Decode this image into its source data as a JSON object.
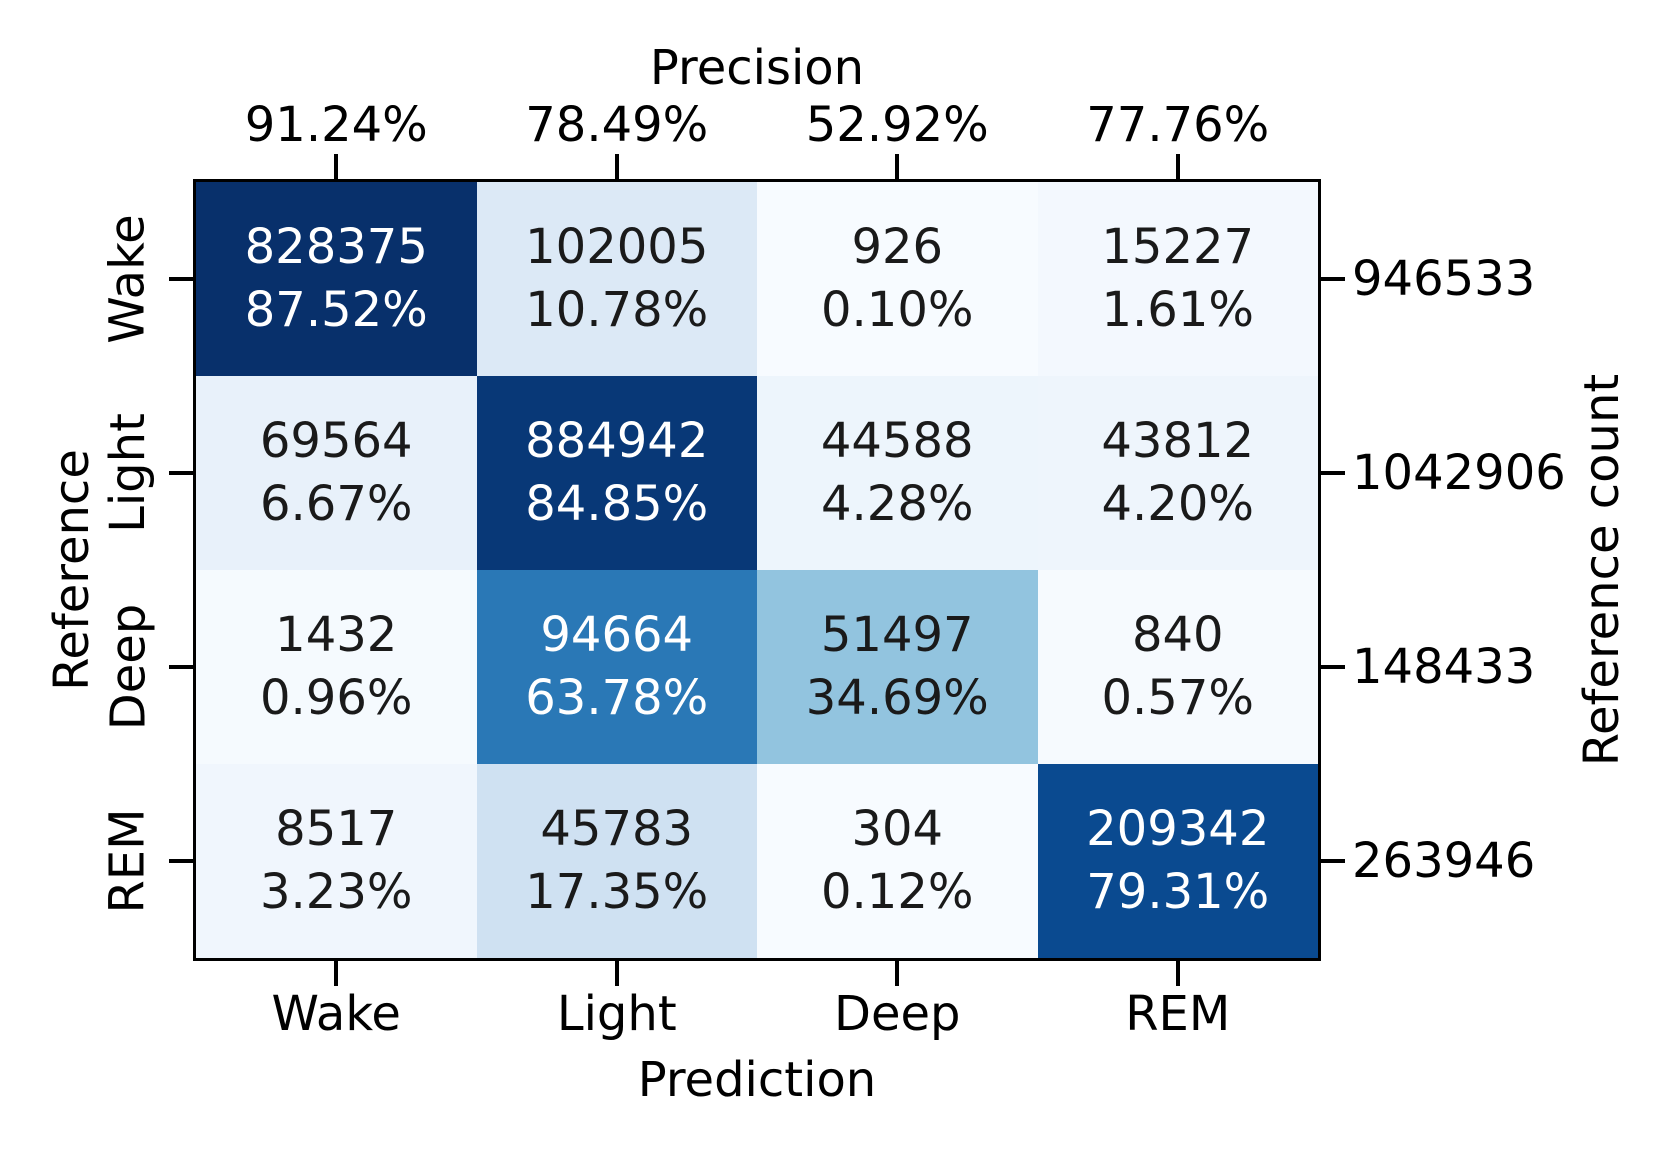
{
  "chart_data": {
    "type": "heatmap",
    "colormap": "Blues",
    "top_axis_title": "Precision",
    "bottom_axis_title": "Prediction",
    "left_axis_title": "Reference",
    "right_axis_title": "Reference count",
    "x_categories": [
      "Wake",
      "Light",
      "Deep",
      "REM"
    ],
    "y_categories": [
      "Wake",
      "Light",
      "Deep",
      "REM"
    ],
    "precision_values": [
      91.24,
      78.49,
      52.92,
      77.76
    ],
    "precision_labels": [
      "91.24%",
      "78.49%",
      "52.92%",
      "77.76%"
    ],
    "reference_counts": [
      946533,
      1042906,
      148433,
      263946
    ],
    "cells": [
      [
        {
          "count": 828375,
          "pct": 87.52,
          "pct_label": "87.52%",
          "bg": "#08306b",
          "fg": "#ffffff"
        },
        {
          "count": 102005,
          "pct": 10.78,
          "pct_label": "10.78%",
          "bg": "#dce9f6",
          "fg": "#1a1a1a"
        },
        {
          "count": 926,
          "pct": 0.1,
          "pct_label": "0.10%",
          "bg": "#f7fbff",
          "fg": "#1a1a1a"
        },
        {
          "count": 15227,
          "pct": 1.61,
          "pct_label": "1.61%",
          "bg": "#f3f8fe",
          "fg": "#1a1a1a"
        }
      ],
      [
        {
          "count": 69564,
          "pct": 6.67,
          "pct_label": "6.67%",
          "bg": "#e8f1fa",
          "fg": "#1a1a1a"
        },
        {
          "count": 884942,
          "pct": 84.85,
          "pct_label": "84.85%",
          "bg": "#083877",
          "fg": "#ffffff"
        },
        {
          "count": 44588,
          "pct": 4.28,
          "pct_label": "4.28%",
          "bg": "#edf5fc",
          "fg": "#1a1a1a"
        },
        {
          "count": 43812,
          "pct": 4.2,
          "pct_label": "4.20%",
          "bg": "#eef5fc",
          "fg": "#1a1a1a"
        }
      ],
      [
        {
          "count": 1432,
          "pct": 0.96,
          "pct_label": "0.96%",
          "bg": "#f5fafe",
          "fg": "#1a1a1a"
        },
        {
          "count": 94664,
          "pct": 63.78,
          "pct_label": "63.78%",
          "bg": "#2a78b6",
          "fg": "#ffffff"
        },
        {
          "count": 51497,
          "pct": 34.69,
          "pct_label": "34.69%",
          "bg": "#92c4df",
          "fg": "#1a1a1a"
        },
        {
          "count": 840,
          "pct": 0.57,
          "pct_label": "0.57%",
          "bg": "#f6fafe",
          "fg": "#1a1a1a"
        }
      ],
      [
        {
          "count": 8517,
          "pct": 3.23,
          "pct_label": "3.23%",
          "bg": "#f0f6fd",
          "fg": "#1a1a1a"
        },
        {
          "count": 45783,
          "pct": 17.35,
          "pct_label": "17.35%",
          "bg": "#cfe1f2",
          "fg": "#1a1a1a"
        },
        {
          "count": 304,
          "pct": 0.12,
          "pct_label": "0.12%",
          "bg": "#f7fbff",
          "fg": "#1a1a1a"
        },
        {
          "count": 209342,
          "pct": 79.31,
          "pct_label": "79.31%",
          "bg": "#0a4a90",
          "fg": "#ffffff"
        }
      ]
    ]
  },
  "colors": {
    "background": "#ffffff",
    "axis_text": "#000000",
    "cell_text_dark": "#1a1a1a",
    "cell_text_light": "#ffffff",
    "border": "#000000",
    "colormap_min": "#f7fbff",
    "colormap_max": "#08306b"
  }
}
